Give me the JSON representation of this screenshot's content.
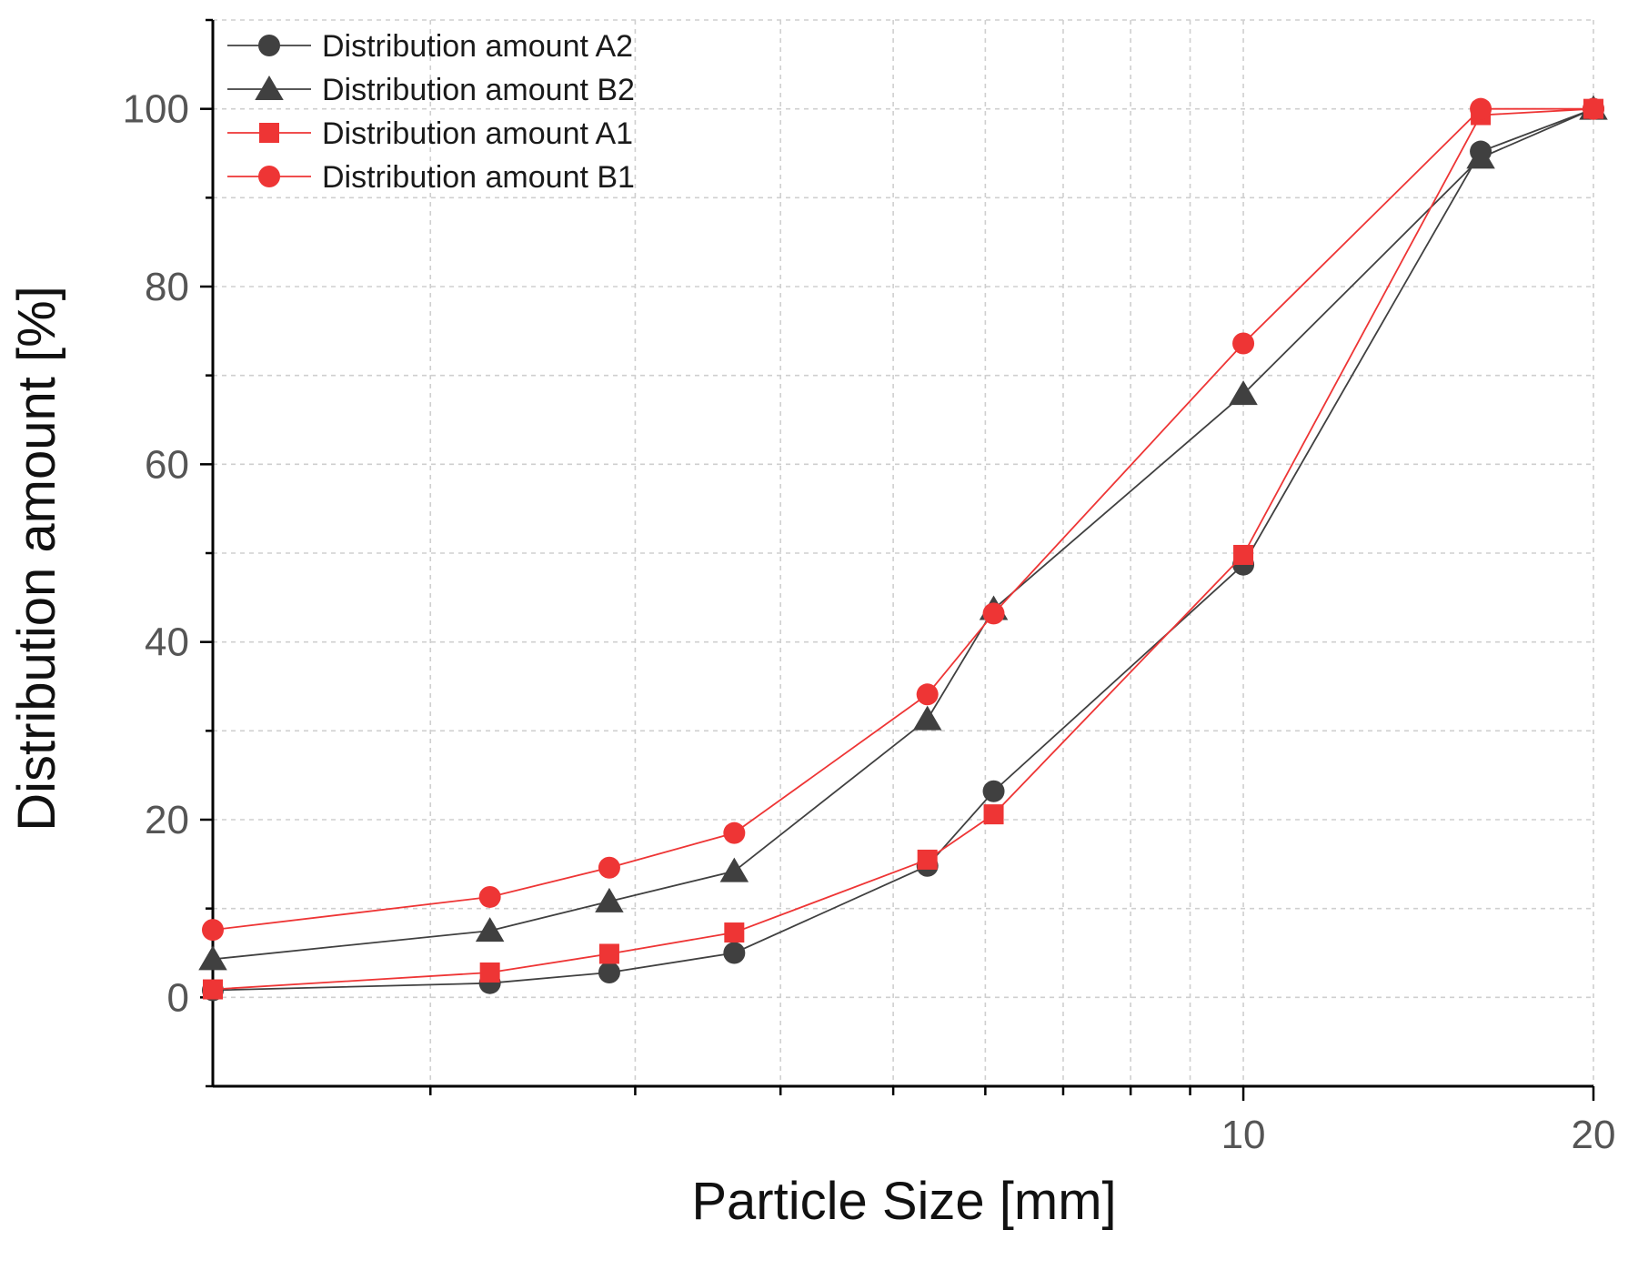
{
  "chart_data": {
    "type": "line",
    "title": "",
    "xlabel": "Particle Size [mm]",
    "ylabel": "Distribution amount [%]",
    "xscale": "log",
    "xlim": [
      1.3,
      20
    ],
    "ylim": [
      -10,
      110
    ],
    "x_ticks": [
      10,
      20
    ],
    "x_tick_labels": [
      "10",
      "20"
    ],
    "y_ticks": [
      0,
      20,
      40,
      60,
      80,
      100
    ],
    "y_tick_labels": [
      "0",
      "20",
      "40",
      "60",
      "80",
      "100"
    ],
    "grid": true,
    "legend_position": "top-left",
    "x": [
      1.3,
      2.25,
      2.85,
      3.65,
      5.35,
      6.1,
      10,
      16,
      20
    ],
    "series": [
      {
        "name": "Distribution amount A2",
        "color": "#404040",
        "marker": "circle",
        "values": [
          0.8,
          1.6,
          2.8,
          5.0,
          14.8,
          23.2,
          48.7,
          95.2,
          100
        ]
      },
      {
        "name": "Distribution amount B2",
        "color": "#404040",
        "marker": "triangle",
        "values": [
          4.3,
          7.5,
          10.8,
          14.2,
          31.3,
          43.7,
          67.9,
          94.5,
          100
        ]
      },
      {
        "name": "Distribution amount A1",
        "color": "#ee3535",
        "marker": "square",
        "values": [
          0.9,
          2.8,
          4.9,
          7.3,
          15.5,
          20.6,
          49.8,
          99.3,
          100
        ]
      },
      {
        "name": "Distribution amount B1",
        "color": "#ee3535",
        "marker": "circle",
        "values": [
          7.6,
          11.3,
          14.6,
          18.5,
          34.1,
          43.2,
          73.6,
          100,
          100
        ]
      }
    ]
  }
}
